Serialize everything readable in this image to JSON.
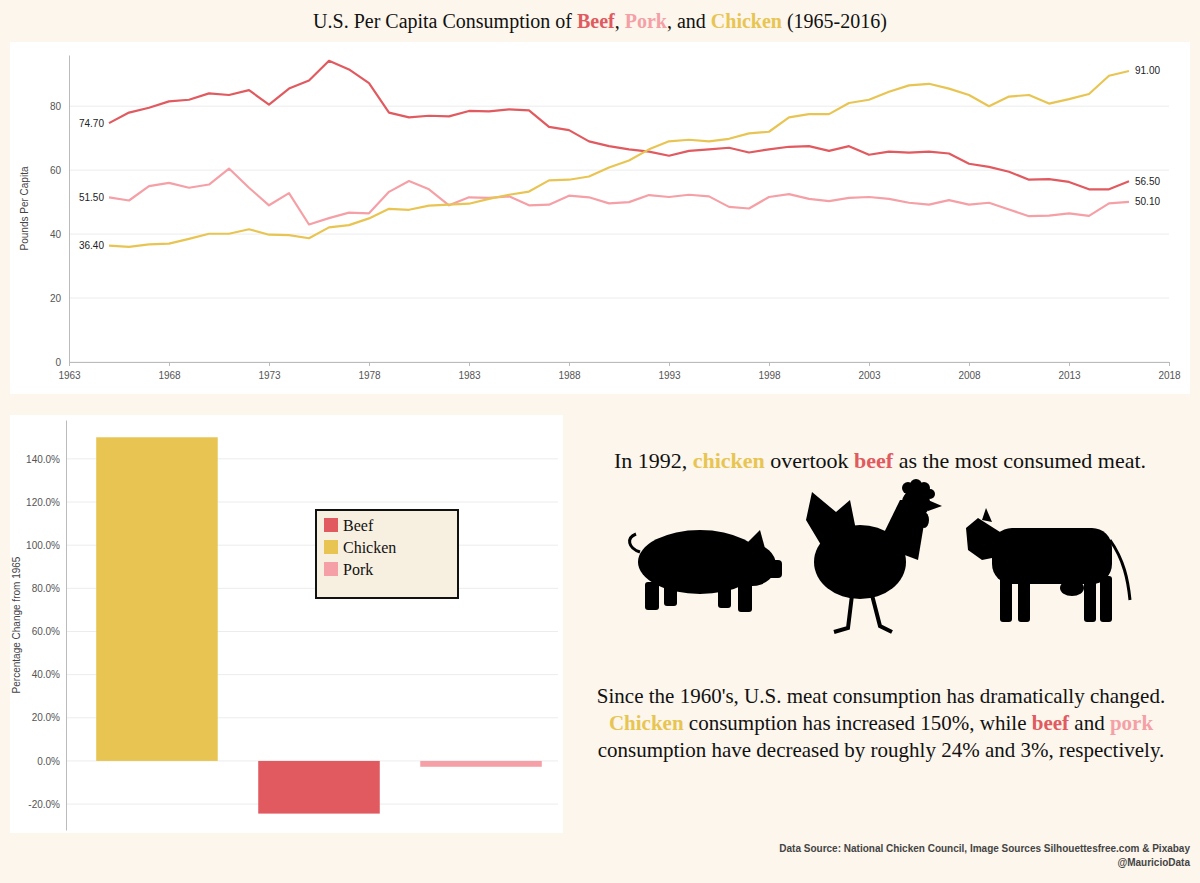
{
  "chart_data": [
    {
      "type": "line",
      "title": [
        {
          "text": "U.S. Per Capita Consumption of "
        },
        {
          "text": "Beef",
          "color": "#e05a5f"
        },
        {
          "text": ", "
        },
        {
          "text": "Pork",
          "color": "#f5a0a6"
        },
        {
          "text": ", and "
        },
        {
          "text": "Chicken",
          "color": "#e8c552"
        },
        {
          "text": " (1965-2016)"
        }
      ],
      "y_label": "Pounds Per Capita",
      "x": [
        1965,
        1966,
        1967,
        1968,
        1969,
        1970,
        1971,
        1972,
        1973,
        1974,
        1975,
        1976,
        1977,
        1978,
        1979,
        1980,
        1981,
        1982,
        1983,
        1984,
        1985,
        1986,
        1987,
        1988,
        1989,
        1990,
        1991,
        1992,
        1993,
        1994,
        1995,
        1996,
        1997,
        1998,
        1999,
        2000,
        2001,
        2002,
        2003,
        2004,
        2005,
        2006,
        2007,
        2008,
        2009,
        2010,
        2011,
        2012,
        2013,
        2014,
        2015,
        2016
      ],
      "series": [
        {
          "color": "#e05a5f",
          "values": [
            74.7,
            78,
            79.5,
            81.5,
            82,
            84,
            83.5,
            85,
            80.5,
            85.5,
            88,
            94.2,
            91.5,
            87.2,
            78,
            76.5,
            77,
            76.8,
            78.5,
            78.4,
            79,
            78.7,
            73.5,
            72.5,
            69,
            67.5,
            66.5,
            65.8,
            64.5,
            66,
            66.5,
            67,
            65.5,
            66.5,
            67.3,
            67.5,
            66,
            67.5,
            64.8,
            65.8,
            65.5,
            65.8,
            65.2,
            62,
            61,
            59.5,
            57,
            57.2,
            56.3,
            54,
            54,
            56.5
          ],
          "value_labels": [
            "74.70",
            null,
            null,
            null,
            null,
            null,
            null,
            null,
            null,
            null,
            null,
            null,
            null,
            null,
            null,
            null,
            null,
            null,
            null,
            null,
            null,
            null,
            null,
            null,
            null,
            null,
            null,
            null,
            null,
            null,
            null,
            null,
            null,
            null,
            null,
            null,
            null,
            null,
            null,
            null,
            null,
            null,
            null,
            null,
            null,
            null,
            null,
            null,
            null,
            null,
            null,
            "56.50"
          ]
        },
        {
          "color": "#f5a0a6",
          "values": [
            51.5,
            50.5,
            55,
            56,
            54.5,
            55.5,
            60.5,
            54.5,
            49,
            52.8,
            43,
            45,
            46.7,
            46.5,
            53.2,
            56.6,
            54,
            49,
            51.5,
            51.3,
            51.8,
            49,
            49.2,
            52,
            51.5,
            49.6,
            50,
            52.2,
            51.6,
            52.3,
            51.8,
            48.5,
            48,
            51.6,
            52.5,
            51,
            50.3,
            51.3,
            51.6,
            51,
            49.8,
            49.2,
            50.6,
            49.2,
            49.8,
            47.7,
            45.6,
            45.8,
            46.5,
            45.7,
            49.6,
            50.1
          ],
          "value_labels": [
            "51.50",
            null,
            null,
            null,
            null,
            null,
            null,
            null,
            null,
            null,
            null,
            null,
            null,
            null,
            null,
            null,
            null,
            null,
            null,
            null,
            null,
            null,
            null,
            null,
            null,
            null,
            null,
            null,
            null,
            null,
            null,
            null,
            null,
            null,
            null,
            null,
            null,
            null,
            null,
            null,
            null,
            null,
            null,
            null,
            null,
            null,
            null,
            null,
            null,
            null,
            null,
            "50.10"
          ]
        },
        {
          "color": "#e8c552",
          "values": [
            36.4,
            36,
            36.8,
            37,
            38.5,
            40.1,
            40.1,
            41.5,
            39.8,
            39.7,
            38.7,
            42.1,
            42.8,
            44.9,
            47.9,
            47.6,
            48.9,
            49.2,
            49.5,
            51,
            52.3,
            53.3,
            56.8,
            57,
            58,
            60.8,
            63,
            66.5,
            69,
            69.5,
            69,
            69.8,
            71.5,
            72,
            76.5,
            77.5,
            77.5,
            81,
            82,
            84.5,
            86.5,
            87,
            85.5,
            83.5,
            80,
            83,
            83.5,
            80.8,
            82.2,
            83.8,
            89.5,
            91
          ],
          "value_labels": [
            "36.40",
            null,
            null,
            null,
            null,
            null,
            null,
            null,
            null,
            null,
            null,
            null,
            null,
            null,
            null,
            null,
            null,
            null,
            null,
            null,
            null,
            null,
            null,
            null,
            null,
            null,
            null,
            null,
            null,
            null,
            null,
            null,
            null,
            null,
            null,
            null,
            null,
            null,
            null,
            null,
            null,
            null,
            null,
            null,
            null,
            null,
            null,
            null,
            null,
            null,
            null,
            "91.00"
          ]
        }
      ],
      "xlim": [
        1963,
        2018
      ],
      "xticks": [
        1963,
        1968,
        1973,
        1978,
        1983,
        1988,
        1993,
        1998,
        2003,
        2008,
        2013,
        2018
      ],
      "ylim": [
        0,
        96
      ],
      "yticks": [
        0,
        20,
        40,
        60,
        80
      ],
      "grid": true,
      "data_labels": true
    },
    {
      "type": "bar",
      "y_label": "Percentage Change from 1965",
      "categories": [
        null,
        null,
        null
      ],
      "series": [
        {
          "name": "Beef",
          "color": "#e05a5f",
          "values": [
            null,
            -24.4,
            null
          ]
        },
        {
          "name": "Chicken",
          "color": "#e8c552",
          "values": [
            150,
            null,
            null
          ]
        },
        {
          "name": "Pork",
          "color": "#f5a0a6",
          "values": [
            null,
            null,
            -2.7
          ]
        }
      ],
      "ylim": [
        -32,
        158
      ],
      "yticks": [
        {
          "value": -20,
          "label": "-20.0%"
        },
        {
          "value": 0,
          "label": "0.0%"
        },
        {
          "value": 20,
          "label": "20.0%"
        },
        {
          "value": 40,
          "label": "40.0%"
        },
        {
          "value": 60,
          "label": "60.0%"
        },
        {
          "value": 80,
          "label": "80.0%"
        },
        {
          "value": 100,
          "label": "100.0%"
        },
        {
          "value": 120,
          "label": "120.0%"
        },
        {
          "value": 140,
          "label": "140.0%"
        }
      ],
      "grid": true,
      "legend": "right",
      "tick_labels": "y"
    }
  ],
  "text": {
    "headline": [
      {
        "text": "In 1992, "
      },
      {
        "text": "chicken",
        "color": "#e8c552"
      },
      {
        "text": " overtook "
      },
      {
        "text": "beef",
        "color": "#e05a5f"
      },
      {
        "text": " as the most consumed meat."
      }
    ],
    "body": [
      {
        "text": "Since the 1960's, U.S. meat consumption has dramatically changed. "
      },
      {
        "text": "Chicken",
        "color": "#e8c552"
      },
      {
        "text": " consumption has increased 150%, while "
      },
      {
        "text": "beef",
        "color": "#e05a5f"
      },
      {
        "text": " and "
      },
      {
        "text": "pork",
        "color": "#f5a0a6"
      },
      {
        "text": " consumption have decreased by roughly 24% and 3%, respectively."
      }
    ],
    "source": "Data Source: National Chicken Council, Image Sources Silhouettesfree.com & Pixabay",
    "credit": "@MauricioData"
  }
}
